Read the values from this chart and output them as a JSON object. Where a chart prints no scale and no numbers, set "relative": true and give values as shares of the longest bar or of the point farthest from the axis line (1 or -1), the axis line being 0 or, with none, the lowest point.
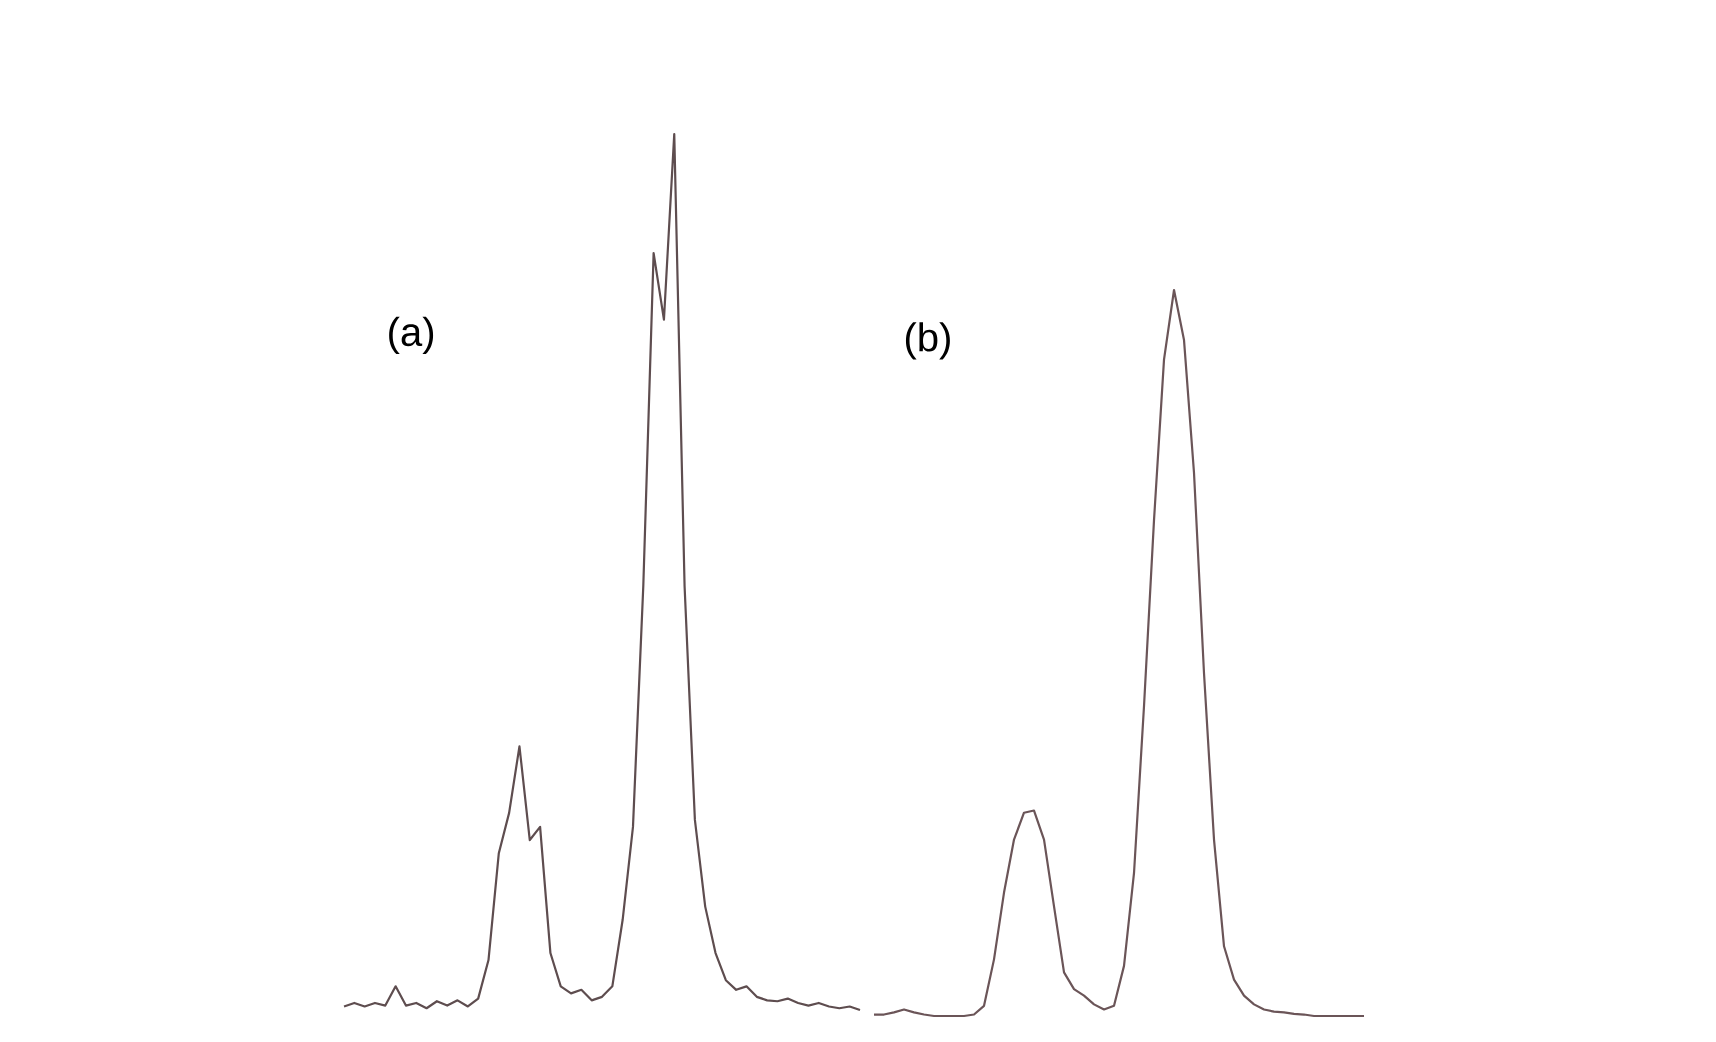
{
  "chart_data": [
    {
      "type": "line",
      "title": "(a)",
      "relative": true,
      "categories": [
        null,
        null,
        null,
        null,
        null,
        null,
        null,
        null,
        null,
        null,
        null,
        null,
        null,
        null,
        null,
        null,
        null,
        null,
        null,
        null,
        null,
        null,
        null,
        null,
        null,
        null,
        null,
        null,
        null,
        null,
        null,
        null,
        null,
        null,
        null,
        null,
        null,
        null,
        null,
        null,
        null,
        null,
        null,
        null,
        null,
        null,
        null,
        null,
        null,
        null,
        null
      ],
      "series": [
        {
          "color": "#5e4d4f",
          "values": [
            0.004,
            0.008,
            0.004,
            0.008,
            0.005,
            0.027,
            0.005,
            0.008,
            0.002,
            0.01,
            0.005,
            0.011,
            0.004,
            0.013,
            0.057,
            0.179,
            0.225,
            0.301,
            0.194,
            0.209,
            0.065,
            0.027,
            0.019,
            0.023,
            0.011,
            0.015,
            0.027,
            0.103,
            0.209,
            0.484,
            0.864,
            0.788,
            1.0,
            0.484,
            0.217,
            0.118,
            0.065,
            0.034,
            0.023,
            0.027,
            0.015,
            0.011,
            0.01,
            0.013,
            0.008,
            0.005,
            0.008,
            0.004,
            0.002,
            0.004,
            0
          ]
        }
      ]
    },
    {
      "type": "line",
      "title": "(b)",
      "relative": true,
      "categories": [
        null,
        null,
        null,
        null,
        null,
        null,
        null,
        null,
        null,
        null,
        null,
        null,
        null,
        null,
        null,
        null,
        null,
        null,
        null,
        null,
        null,
        null,
        null,
        null,
        null,
        null,
        null,
        null,
        null,
        null,
        null,
        null,
        null,
        null,
        null,
        null,
        null,
        null,
        null,
        null,
        null,
        null,
        null,
        null,
        null,
        null,
        null,
        null,
        null,
        null
      ],
      "series": [
        {
          "color": "#6b5558",
          "values": [
            0.002,
            0.002,
            0.005,
            0.009,
            0.005,
            0.002,
            0,
            0,
            0,
            0,
            0.002,
            0.014,
            0.078,
            0.17,
            0.243,
            0.28,
            0.283,
            0.243,
            0.151,
            0.06,
            0.037,
            0.028,
            0.016,
            0.009,
            0.014,
            0.069,
            0.197,
            0.427,
            0.683,
            0.904,
            1.0,
            0.931,
            0.748,
            0.472,
            0.243,
            0.096,
            0.05,
            0.028,
            0.016,
            0.009,
            0.006,
            0.005,
            0.003,
            0.002,
            0,
            0,
            0,
            0,
            0,
            0
          ]
        }
      ]
    }
  ]
}
